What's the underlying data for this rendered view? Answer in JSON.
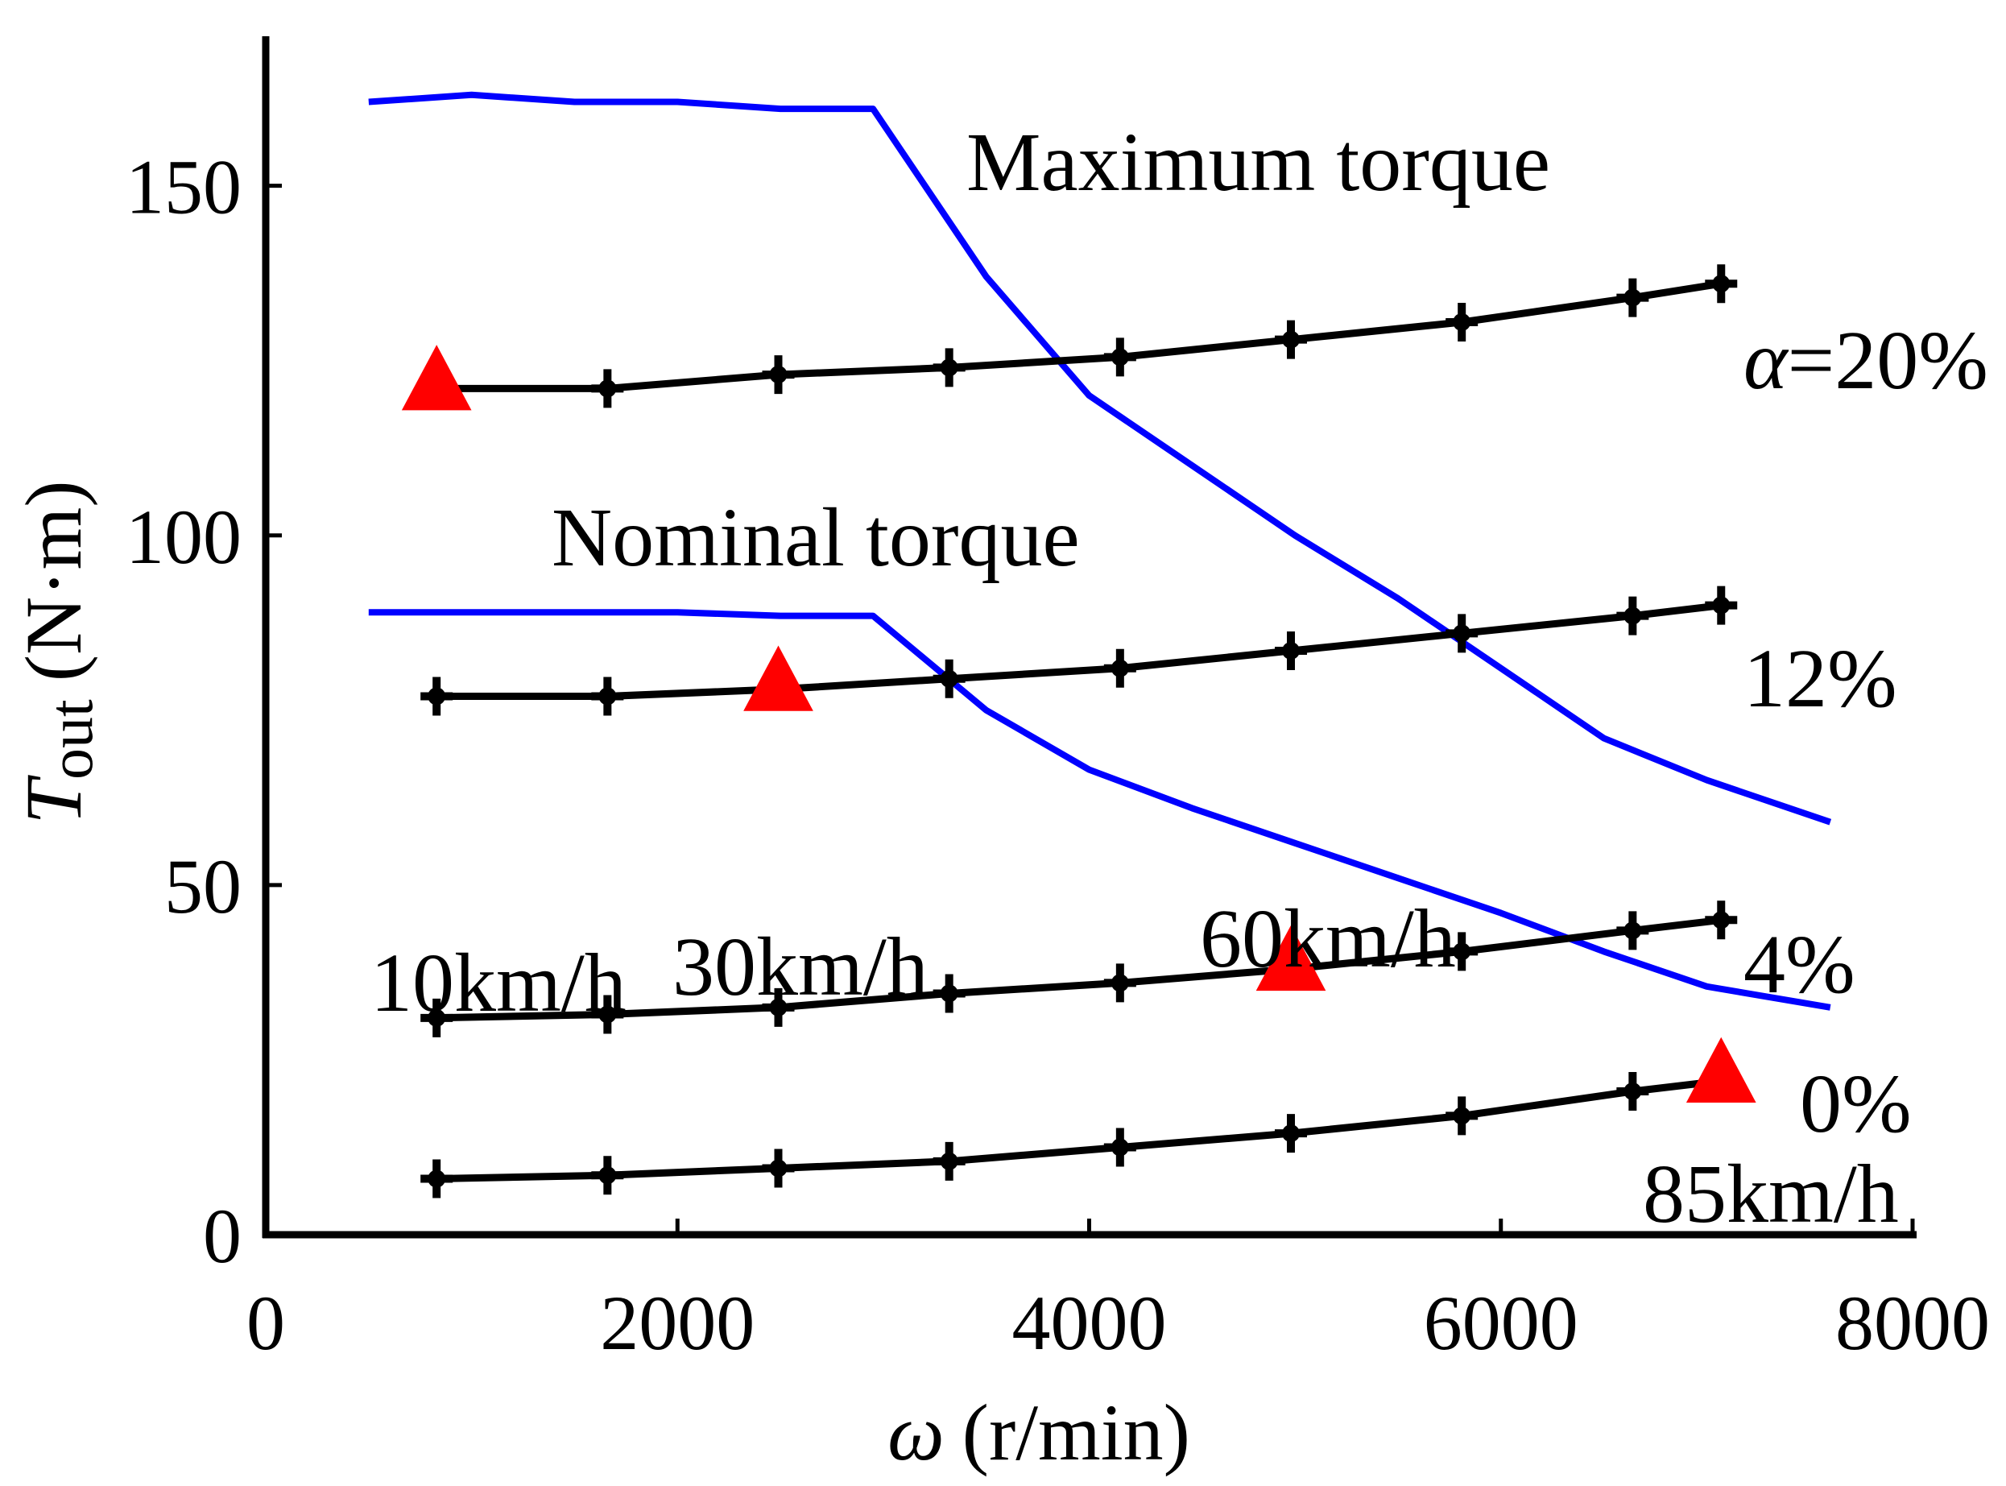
{
  "chart_data": {
    "type": "line",
    "title": "",
    "xlabel": {
      "symbol": "ω",
      "unit": "(r/min)"
    },
    "ylabel": {
      "symbol": "T",
      "subscript": "out",
      "unit": "(N·m)"
    },
    "xlim": [
      0,
      8000
    ],
    "ylim": [
      0,
      170
    ],
    "xticks": [
      0,
      2000,
      4000,
      6000,
      8000
    ],
    "yticks": [
      0,
      50,
      100,
      150
    ],
    "grid": false,
    "colors": {
      "torque_limit": "#0000ff",
      "operating": "#000000",
      "marker": "#ff0000"
    },
    "limit_curves": [
      {
        "name": "Maximum torque",
        "x": [
          500,
          1000,
          1500,
          2000,
          2500,
          2950,
          3500,
          4000,
          4500,
          5000,
          5500,
          6000,
          6500,
          7000,
          7600
        ],
        "y": [
          162,
          163,
          162,
          162,
          161,
          161,
          137,
          120,
          110,
          100,
          91,
          81,
          71,
          65,
          59
        ]
      },
      {
        "name": "Nominal torque",
        "x": [
          500,
          1000,
          1500,
          2000,
          2500,
          2950,
          3500,
          4000,
          4500,
          5000,
          5500,
          6000,
          6500,
          7000,
          7600
        ],
        "y": [
          89,
          89,
          89,
          89,
          88.5,
          88.5,
          75,
          66.5,
          61,
          56,
          51,
          46,
          40.5,
          35.5,
          32.5
        ]
      }
    ],
    "series": [
      {
        "name": "α=20%",
        "x": [
          830,
          1660,
          2490,
          3320,
          4150,
          4980,
          5810,
          6640,
          7070
        ],
        "y": [
          121,
          121,
          123,
          124,
          125.5,
          128,
          130.5,
          134,
          136
        ]
      },
      {
        "name": "12%",
        "x": [
          830,
          1660,
          2490,
          3320,
          4150,
          4980,
          5810,
          6640,
          7070
        ],
        "y": [
          77,
          77,
          78,
          79.5,
          81,
          83.5,
          86,
          88.5,
          90
        ]
      },
      {
        "name": "4%",
        "x": [
          830,
          1660,
          2490,
          3320,
          4150,
          4980,
          5810,
          6640,
          7070
        ],
        "y": [
          31,
          31.5,
          32.5,
          34.5,
          36,
          38,
          40.5,
          43.5,
          45
        ]
      },
      {
        "name": "0%",
        "x": [
          830,
          1660,
          2490,
          3320,
          4150,
          4980,
          5810,
          6640,
          7070
        ],
        "y": [
          8,
          8.5,
          9.5,
          10.5,
          12.5,
          14.5,
          17,
          20.5,
          22
        ]
      }
    ],
    "markers": [
      {
        "label": "10km/h",
        "x": 830,
        "y": 121
      },
      {
        "label": "30km/h",
        "x": 2490,
        "y": 78
      },
      {
        "label": "60km/h",
        "x": 4980,
        "y": 38
      },
      {
        "label": "85km/h",
        "x": 7070,
        "y": 22
      }
    ],
    "annotations": {
      "max_torque": "Maximum torque",
      "nominal_torque": "Nominal torque",
      "alpha_prefix": "α",
      "alpha_20": "=20%",
      "alpha_12": "12%",
      "alpha_4": "4%",
      "alpha_0": "0%",
      "speed_10": "10km/h",
      "speed_30": "30km/h",
      "speed_60": "60km/h",
      "speed_85": "85km/h"
    }
  }
}
